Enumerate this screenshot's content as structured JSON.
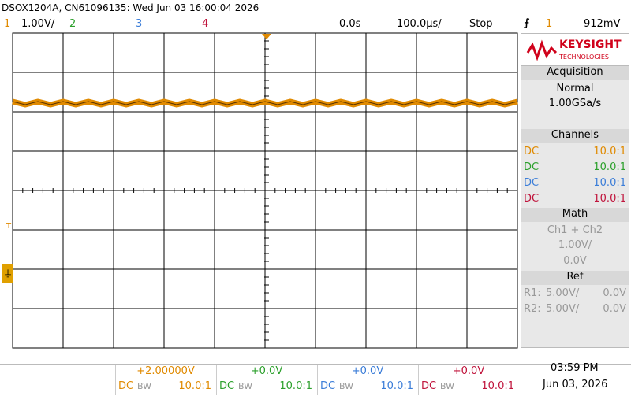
{
  "header": {
    "title": "DSOX1204A, CN61096135: Wed Jun 03 16:00:04 2026"
  },
  "status_bar": {
    "ch1_label": "1",
    "ch1_scale": "1.00V/",
    "ch2_label": "2",
    "ch3_label": "3",
    "ch4_label": "4",
    "time_delay": "0.0s",
    "time_scale": "100.0µs/",
    "run_state": "Stop",
    "trigger_source": "1",
    "trigger_level": "912mV"
  },
  "sidebar": {
    "brand": "KEYSIGHT",
    "brand_sub": "TECHNOLOGIES",
    "acquisition": {
      "title": "Acquisition",
      "mode": "Normal",
      "rate": "1.00GSa/s"
    },
    "channels": {
      "title": "Channels",
      "rows": [
        [
          "DC",
          "10.0:1"
        ],
        [
          "DC",
          "10.0:1"
        ],
        [
          "DC",
          "10.0:1"
        ],
        [
          "DC",
          "10.0:1"
        ]
      ]
    },
    "math": {
      "title": "Math",
      "function": "Ch1 + Ch2",
      "scale": "1.00V/",
      "offset": "0.0V"
    },
    "ref": {
      "title": "Ref",
      "rows": [
        [
          "R1:",
          "5.00V/",
          "0.0V"
        ],
        [
          "R2:",
          "5.00V/",
          "0.0V"
        ]
      ]
    }
  },
  "footer": {
    "channels": [
      {
        "offset": "+2.00000V",
        "coupling": "DC",
        "bw": "BW",
        "probe": "10.0:1"
      },
      {
        "offset": "+0.0V",
        "coupling": "DC",
        "bw": "BW",
        "probe": "10.0:1"
      },
      {
        "offset": "+0.0V",
        "coupling": "DC",
        "bw": "BW",
        "probe": "10.0:1"
      },
      {
        "offset": "+0.0V",
        "coupling": "DC",
        "bw": "BW",
        "probe": "10.0:1"
      }
    ],
    "time": "03:59 PM",
    "date": "Jun 03, 2026"
  }
}
